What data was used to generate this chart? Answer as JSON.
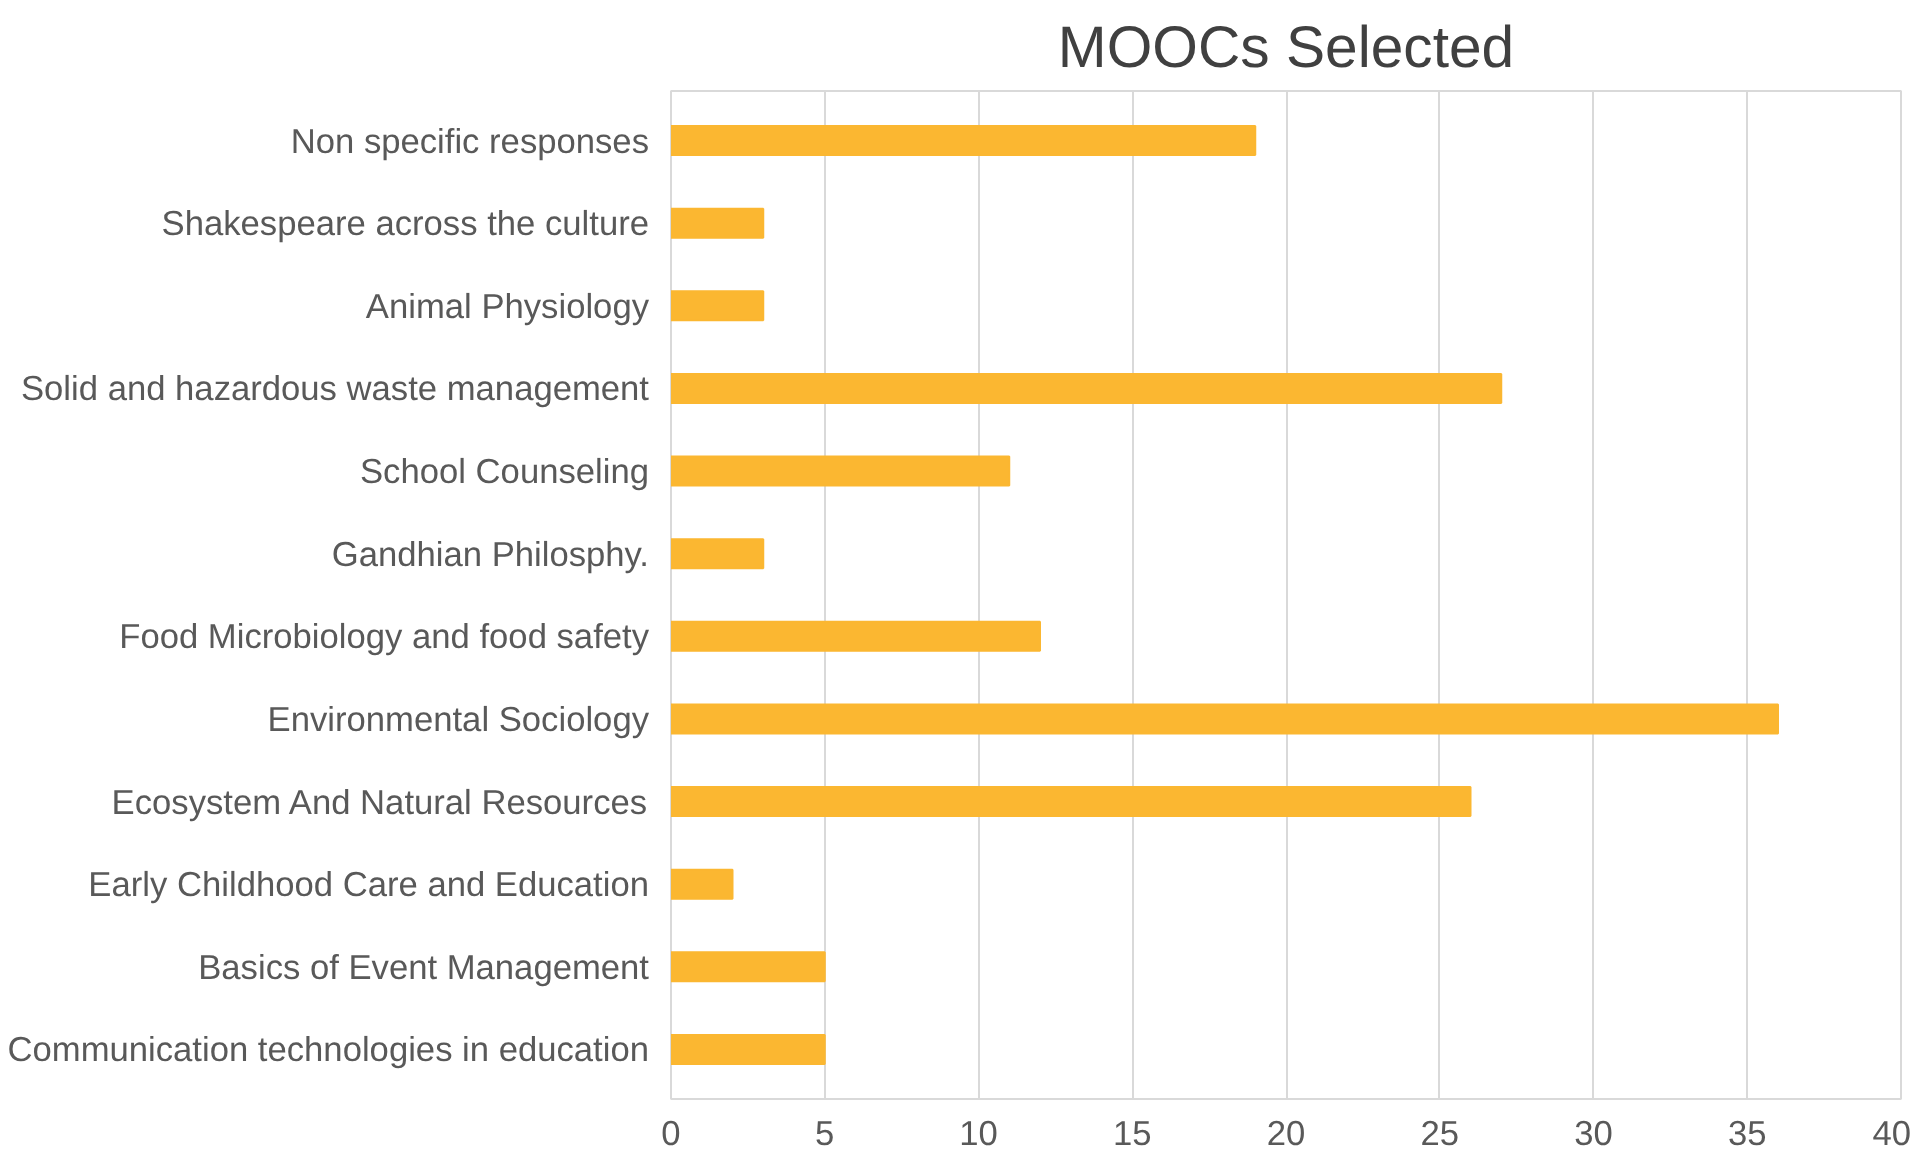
{
  "chart_data": {
    "type": "bar",
    "orientation": "horizontal",
    "title": "MOOCs Selected",
    "categories": [
      "Non specific responses",
      "Shakespeare across the culture",
      "Animal Physiology",
      "Solid and hazardous waste management",
      "School Counseling",
      "Gandhian Philosphy.",
      "Food Microbiology and food safety",
      "Environmental Sociology",
      "Ecosystem And Natural Resources",
      "Early Childhood Care and Education",
      "Basics of Event Management",
      "Communication technologies in education"
    ],
    "values": [
      19,
      3,
      3,
      27,
      11,
      3,
      12,
      36,
      26,
      2,
      5,
      5
    ],
    "color": "#fbb731",
    "xlim": [
      0,
      40
    ],
    "xticks": [
      0,
      5,
      10,
      15,
      20,
      25,
      30,
      35,
      40
    ],
    "grid": "x"
  }
}
